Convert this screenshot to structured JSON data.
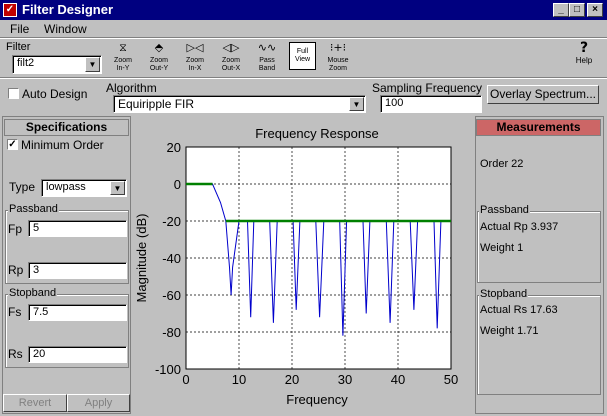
{
  "window": {
    "title": "Filter Designer"
  },
  "menu": [
    "File",
    "Window"
  ],
  "toolbar": {
    "filter_label": "Filter",
    "filter_value": "filt2",
    "buttons": [
      {
        "top": "Zoom",
        "bottom": "In-Y"
      },
      {
        "top": "Zoom",
        "bottom": "Out-Y"
      },
      {
        "top": "Zoom",
        "bottom": "In-X"
      },
      {
        "top": "Zoom",
        "bottom": "Out-X"
      },
      {
        "top": "Pass",
        "bottom": "Band"
      },
      {
        "top": "Full",
        "bottom": "View"
      },
      {
        "top": "Mouse",
        "bottom": "Zoom"
      }
    ],
    "help": "Help",
    "help_glyph": "?"
  },
  "options": {
    "auto_design": "Auto Design",
    "algorithm_label": "Algorithm",
    "algorithm_value": "Equiripple FIR",
    "sampling_label": "Sampling Frequency",
    "sampling_value": "100",
    "overlay": "Overlay Spectrum..."
  },
  "specs": {
    "header": "Specifications",
    "minimum_order": "Minimum Order",
    "type_label": "Type",
    "type_value": "lowpass",
    "passband": "Passband",
    "fp_label": "Fp",
    "fp_value": "5",
    "rp_label": "Rp",
    "rp_value": "3",
    "stopband": "Stopband",
    "fs_label": "Fs",
    "fs_value": "7.5",
    "rs_label": "Rs",
    "rs_value": "20",
    "revert": "Revert",
    "apply": "Apply"
  },
  "measurements": {
    "header": "Measurements",
    "order": "Order 22",
    "passband": "Passband",
    "actual_rp": "Actual Rp  3.937",
    "weight_p": "Weight 1",
    "stopband": "Stopband",
    "actual_rs": "Actual Rs  17.63",
    "weight_s": "Weight 1.71"
  },
  "chart_data": {
    "type": "line",
    "title": "Frequency Response",
    "xlabel": "Frequency",
    "ylabel": "Magnitude (dB)",
    "xlim": [
      0,
      50
    ],
    "ylim": [
      -100,
      20
    ],
    "xticks": [
      0,
      10,
      20,
      30,
      40,
      50
    ],
    "yticks": [
      20,
      0,
      -20,
      -40,
      -60,
      -80,
      -100
    ],
    "grid": true,
    "series": [
      {
        "color": "#0000cc",
        "x": [
          0,
          5,
          6.5,
          7.5,
          8.2,
          8.5,
          8.8,
          10.0,
          11.6,
          12.2,
          12.8,
          14.0,
          15.8,
          16.5,
          17.2,
          18.5,
          20.2,
          20.8,
          21.5,
          22.8,
          24.5,
          25.2,
          26.0,
          27.2,
          29.0,
          29.6,
          30.3,
          31.6,
          33.4,
          34.0,
          34.7,
          36.0,
          37.8,
          38.5,
          39.2,
          40.5,
          42.3,
          43.0,
          43.7,
          45.0,
          46.8,
          47.4,
          48.1,
          49.2,
          50
        ],
        "y": [
          0,
          0,
          -10,
          -20,
          -45,
          -60,
          -45,
          -20,
          -20,
          -72,
          -20,
          -20,
          -20,
          -75,
          -20,
          -20,
          -20,
          -68,
          -20,
          -20,
          -20,
          -72,
          -20,
          -20,
          -20,
          -82,
          -20,
          -20,
          -20,
          -70,
          -20,
          -20,
          -20,
          -75,
          -20,
          -20,
          -20,
          -68,
          -20,
          -20,
          -20,
          -78,
          -20,
          -20,
          -20
        ]
      },
      {
        "color": "#008000",
        "x": [
          0,
          5
        ],
        "y": [
          0,
          0
        ]
      },
      {
        "color": "#008000",
        "x": [
          7.5,
          50
        ],
        "y": [
          -20,
          -20
        ]
      }
    ]
  }
}
